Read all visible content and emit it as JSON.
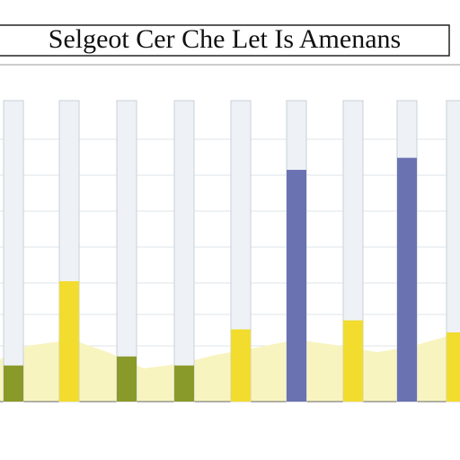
{
  "chart_data": {
    "type": "bar",
    "title": "Selgeot Cer Che Let Is Amenans",
    "values": [
      12,
      40,
      15,
      12,
      24,
      77,
      27,
      81,
      23
    ],
    "colors": [
      "#8a9a2a",
      "#f2dc2e",
      "#8a9a2a",
      "#8a9a2a",
      "#f2dc2e",
      "#6a72b2",
      "#f2dc2e",
      "#6a72b2",
      "#f2dc2e"
    ],
    "ylim": [
      0,
      100
    ]
  }
}
